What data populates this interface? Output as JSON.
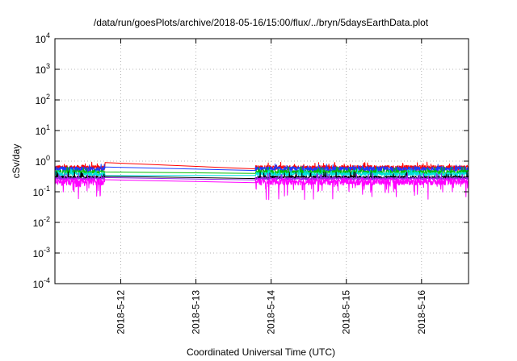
{
  "chart_data": {
    "type": "line",
    "title": "/data/run/goesPlots/archive/2018-05-16/15:00/flux/../bryn/5daysEarthData.plot",
    "ylabel": "cSv/day",
    "xlabel": "Coordinated Universal Time (UTC)",
    "yscale": "log",
    "ylim": [
      0.0001,
      10000
    ],
    "xlim": [
      "2018-05-11T03:00",
      "2018-05-16T15:00"
    ],
    "y_ticks": [
      {
        "base": "10",
        "exp": "-4",
        "value": 0.0001
      },
      {
        "base": "10",
        "exp": "-3",
        "value": 0.001
      },
      {
        "base": "10",
        "exp": "-2",
        "value": 0.01
      },
      {
        "base": "10",
        "exp": "-1",
        "value": 0.1
      },
      {
        "base": "10",
        "exp": "0",
        "value": 1
      },
      {
        "base": "10",
        "exp": "1",
        "value": 10
      },
      {
        "base": "10",
        "exp": "2",
        "value": 100
      },
      {
        "base": "10",
        "exp": "3",
        "value": 1000
      },
      {
        "base": "10",
        "exp": "4",
        "value": 10000
      }
    ],
    "x_ticks": [
      {
        "label": "2018-5-12",
        "value": "2018-05-12T00:00"
      },
      {
        "label": "2018-5-13",
        "value": "2018-05-13T00:00"
      },
      {
        "label": "2018-5-14",
        "value": "2018-05-14T00:00"
      },
      {
        "label": "2018-5-15",
        "value": "2018-05-15T00:00"
      },
      {
        "label": "2018-5-16",
        "value": "2018-05-16T00:00"
      }
    ],
    "grid": true,
    "data_gap": [
      "2018-05-11T19:00",
      "2018-05-13T19:00"
    ],
    "series": [
      {
        "color": "#ff0000",
        "level": 0.62,
        "noise": 0.18,
        "dips": false
      },
      {
        "color": "#1a3cff",
        "level": 0.55,
        "noise": 0.2,
        "dips": false
      },
      {
        "color": "#00c000",
        "level": 0.44,
        "noise": 0.16,
        "dips": false
      },
      {
        "color": "#00e0e0",
        "level": 0.38,
        "noise": 0.14,
        "dips": false
      },
      {
        "color": "#000000",
        "level": 0.3,
        "noise": 0.1,
        "dips": false
      },
      {
        "color": "#8a2be2",
        "level": 0.27,
        "noise": 0.1,
        "dips": false
      },
      {
        "color": "#ff00ff",
        "level": 0.22,
        "noise": 0.25,
        "dips": true
      }
    ]
  }
}
